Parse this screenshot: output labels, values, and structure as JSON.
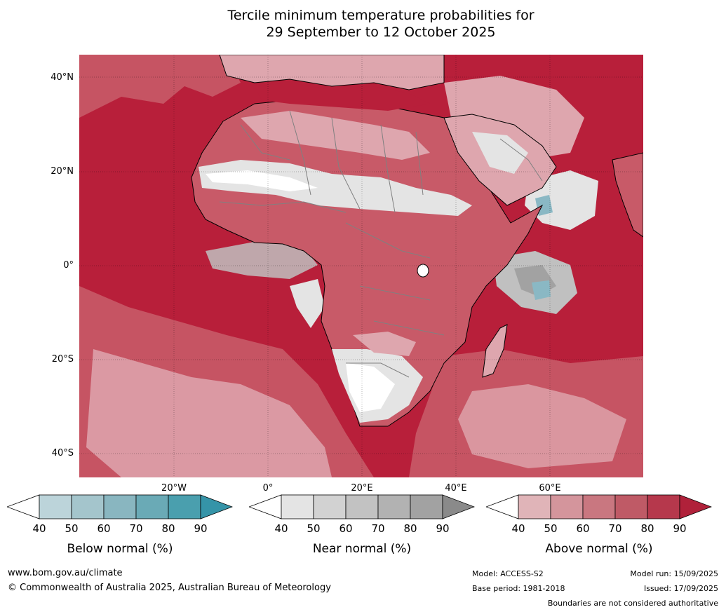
{
  "title": {
    "line1": "Tercile minimum temperature probabilities for",
    "line2": "29 September to 12 October 2025"
  },
  "map": {
    "lat_labels": [
      "40°N",
      "20°N",
      "0°",
      "20°S",
      "40°S"
    ],
    "lon_labels": [
      "20°W",
      "0°",
      "20°E",
      "40°E",
      "60°E"
    ],
    "colors": {
      "ocean_dominant": "#b81f3a",
      "above_mid": "#c85a68",
      "above_low": "#dea6ae",
      "near_light": "#e4e4e4",
      "near_mid": "#c0c0c0",
      "near_dark": "#a2a2a2",
      "below_mid": "#8ab8c4",
      "white": "#ffffff",
      "coast": "#000000",
      "border": "#808080"
    }
  },
  "legends": [
    {
      "caption": "Below normal (%)",
      "ticks": [
        "40",
        "50",
        "60",
        "70",
        "80",
        "90"
      ],
      "colors": [
        "#ffffff",
        "#bcd4da",
        "#a4c5cc",
        "#89b6c0",
        "#6aaab6",
        "#4a9fae",
        "#3594a8"
      ]
    },
    {
      "caption": "Near normal (%)",
      "ticks": [
        "40",
        "50",
        "60",
        "70",
        "80",
        "90"
      ],
      "colors": [
        "#ffffff",
        "#e4e4e4",
        "#d2d2d2",
        "#c2c2c2",
        "#b2b2b2",
        "#a2a2a2",
        "#8a8a8a"
      ]
    },
    {
      "caption": "Above normal (%)",
      "ticks": [
        "40",
        "50",
        "60",
        "70",
        "80",
        "90"
      ],
      "colors": [
        "#ffffff",
        "#e0b4b8",
        "#d4959c",
        "#c97780",
        "#bf5a66",
        "#b6384c",
        "#b0213a"
      ]
    }
  ],
  "footer": {
    "website": "www.bom.gov.au/climate",
    "copyright": "© Commonwealth of Australia 2025, Australian Bureau of Meteorology",
    "model": "Model: ACCESS-S2",
    "base_period": "Base period: 1981-2018",
    "model_run": "Model run: 15/09/2025",
    "issued": "Issued: 17/09/2025",
    "boundaries": "Boundaries are not considered authoritative"
  }
}
